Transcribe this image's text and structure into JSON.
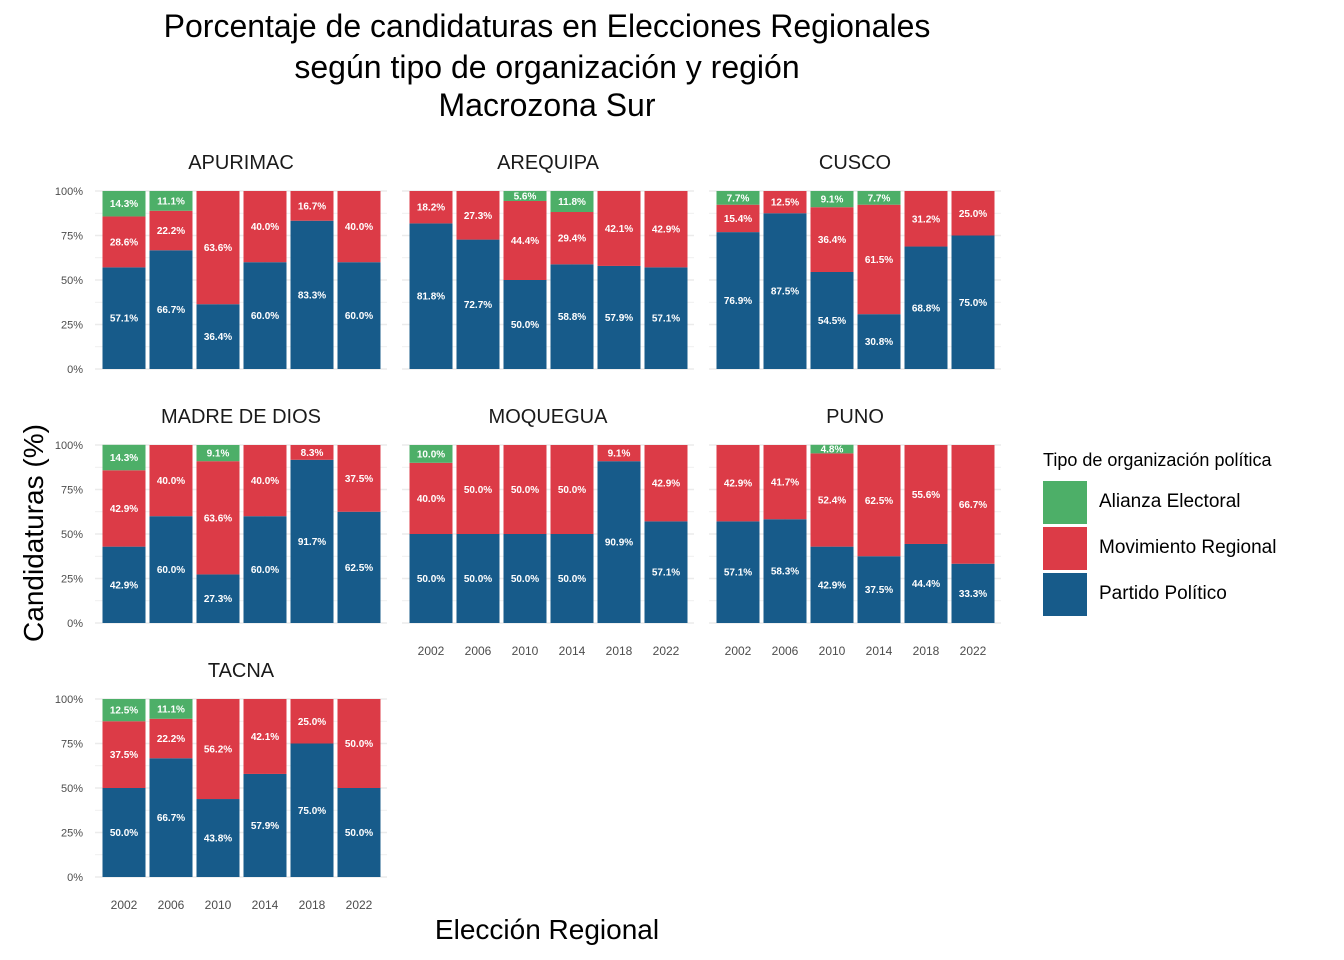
{
  "title_lines": [
    "Porcentaje de candidaturas en Elecciones Regionales",
    "según tipo de organización y región",
    "Macrozona Sur"
  ],
  "axis": {
    "ylabel": "Candidaturas (%)",
    "xlabel": "Elección Regional"
  },
  "legend": {
    "title": "Tipo de organización política",
    "items": [
      {
        "label": "Alianza Electoral",
        "color": "#4daf68"
      },
      {
        "label": "Movimiento Regional",
        "color": "#dc3b47"
      },
      {
        "label": "Partido Político",
        "color": "#175b8a"
      }
    ]
  },
  "chart_data": {
    "type": "bar",
    "stacked": true,
    "categories": [
      "2002",
      "2006",
      "2010",
      "2014",
      "2018",
      "2022"
    ],
    "y_ticks": [
      "0%",
      "25%",
      "50%",
      "75%",
      "100%"
    ],
    "ylim": [
      0,
      100
    ],
    "series_colors": {
      "Partido Político": "#175b8a",
      "Movimiento Regional": "#dc3b47",
      "Alianza Electoral": "#4daf68"
    },
    "panels": [
      {
        "name": "APURIMAC",
        "series": [
          {
            "name": "Partido Político",
            "values": [
              57.1,
              66.7,
              36.4,
              60.0,
              83.3,
              60.0
            ]
          },
          {
            "name": "Movimiento Regional",
            "values": [
              28.6,
              22.2,
              63.6,
              40.0,
              16.7,
              40.0
            ]
          },
          {
            "name": "Alianza Electoral",
            "values": [
              14.3,
              11.1,
              0,
              0,
              0,
              0
            ]
          }
        ]
      },
      {
        "name": "AREQUIPA",
        "series": [
          {
            "name": "Partido Político",
            "values": [
              81.8,
              72.7,
              50.0,
              58.8,
              57.9,
              57.1
            ]
          },
          {
            "name": "Movimiento Regional",
            "values": [
              18.2,
              27.3,
              44.4,
              29.4,
              42.1,
              42.9
            ]
          },
          {
            "name": "Alianza Electoral",
            "values": [
              0,
              0,
              5.6,
              11.8,
              0,
              0
            ]
          }
        ]
      },
      {
        "name": "CUSCO",
        "series": [
          {
            "name": "Partido Político",
            "values": [
              76.9,
              87.5,
              54.5,
              30.8,
              68.8,
              75.0
            ]
          },
          {
            "name": "Movimiento Regional",
            "values": [
              15.4,
              12.5,
              36.4,
              61.5,
              31.2,
              25.0
            ]
          },
          {
            "name": "Alianza Electoral",
            "values": [
              7.7,
              0,
              9.1,
              7.7,
              0,
              0
            ]
          }
        ]
      },
      {
        "name": "MADRE DE DIOS",
        "series": [
          {
            "name": "Partido Político",
            "values": [
              42.9,
              60.0,
              27.3,
              60.0,
              91.7,
              62.5
            ]
          },
          {
            "name": "Movimiento Regional",
            "values": [
              42.9,
              40.0,
              63.6,
              40.0,
              8.3,
              37.5
            ]
          },
          {
            "name": "Alianza Electoral",
            "values": [
              14.3,
              0,
              9.1,
              0,
              0,
              0
            ]
          }
        ]
      },
      {
        "name": "MOQUEGUA",
        "series": [
          {
            "name": "Partido Político",
            "values": [
              50.0,
              50.0,
              50.0,
              50.0,
              90.9,
              57.1
            ]
          },
          {
            "name": "Movimiento Regional",
            "values": [
              40.0,
              50.0,
              50.0,
              50.0,
              9.1,
              42.9
            ]
          },
          {
            "name": "Alianza Electoral",
            "values": [
              10.0,
              0,
              0,
              0,
              0,
              0
            ]
          }
        ]
      },
      {
        "name": "PUNO",
        "series": [
          {
            "name": "Partido Político",
            "values": [
              57.1,
              58.3,
              42.9,
              37.5,
              44.4,
              33.3
            ]
          },
          {
            "name": "Movimiento Regional",
            "values": [
              42.9,
              41.7,
              52.4,
              62.5,
              55.6,
              66.7
            ]
          },
          {
            "name": "Alianza Electoral",
            "values": [
              0,
              0,
              4.8,
              0,
              0,
              0
            ]
          }
        ]
      },
      {
        "name": "TACNA",
        "series": [
          {
            "name": "Partido Político",
            "values": [
              50.0,
              66.7,
              43.8,
              57.9,
              75.0,
              50.0
            ]
          },
          {
            "name": "Movimiento Regional",
            "values": [
              37.5,
              22.2,
              56.2,
              42.1,
              25.0,
              50.0
            ]
          },
          {
            "name": "Alianza Electoral",
            "values": [
              12.5,
              11.1,
              0,
              0,
              0,
              0
            ]
          }
        ]
      }
    ]
  }
}
